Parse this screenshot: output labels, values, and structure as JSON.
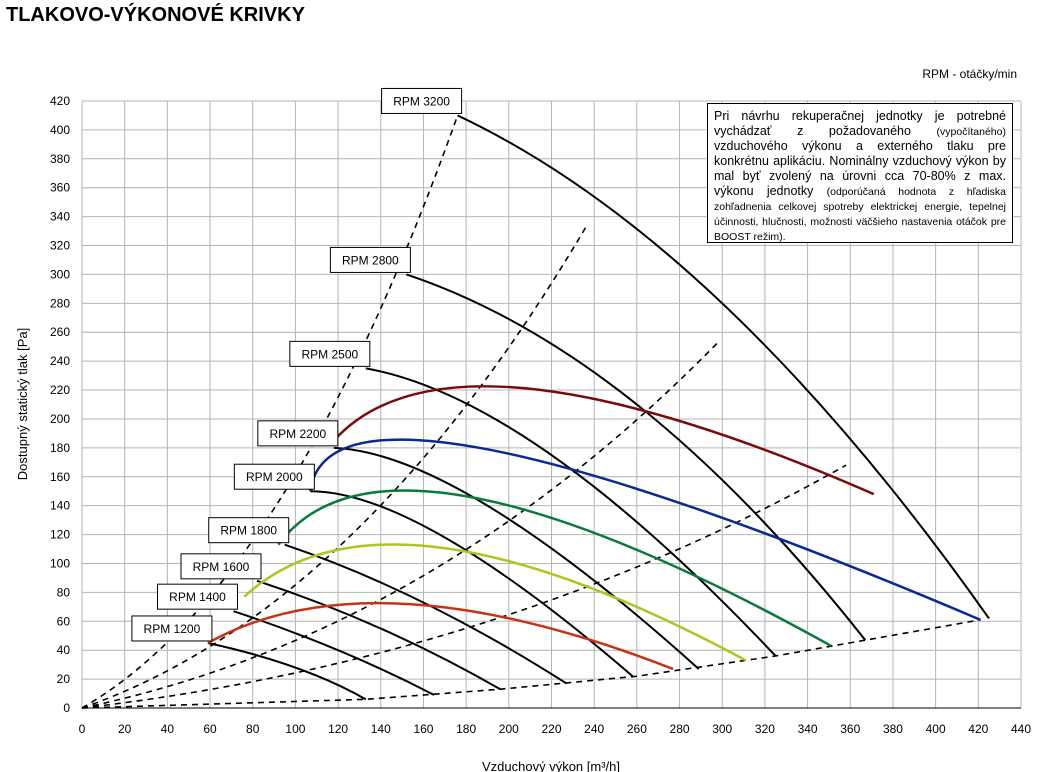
{
  "title": "TLAKOVO-VÝKONOVÉ KRIVKY",
  "rpm_unit_label": "RPM - otáčky/min",
  "note": {
    "main": "Pri návrhu rekuperačnej jednotky je potrebné vychádzať z požadovaného",
    "paren1": "(vypočítaného)",
    "main2": "vzduchového výkonu a externého tlaku pre konkrétnu aplikáciu. Nominálny vzduchový výkon by mal byť zvolený na úrovni cca 70-80% z max. výkonu jednotky",
    "paren2": "(odporúčaná hodnota z hľadiska zohľadnenia celkovej spotreby elektrickej energie, tepelnej účinnosti, hlučnosti, možnosti väčšieho nastavenia otáčok pre BOOST režim)."
  },
  "chart_data": {
    "type": "line",
    "xlabel": "Vzduchový výkon [m³/h]",
    "ylabel": "Dostupný statický tlak [Pa]",
    "xlim": [
      0,
      440
    ],
    "ylim": [
      0,
      420
    ],
    "x_ticks": [
      0,
      20,
      40,
      60,
      80,
      100,
      120,
      140,
      160,
      180,
      200,
      220,
      240,
      260,
      280,
      300,
      320,
      340,
      360,
      380,
      400,
      420,
      440
    ],
    "y_ticks": [
      0,
      20,
      40,
      60,
      80,
      100,
      120,
      140,
      160,
      180,
      200,
      220,
      240,
      260,
      280,
      300,
      320,
      340,
      360,
      380,
      400,
      420
    ],
    "grid": true,
    "rpm_curves": [
      {
        "name": "RPM 1200",
        "points": [
          [
            59,
            45
          ],
          [
            100,
            28
          ],
          [
            133,
            6
          ]
        ]
      },
      {
        "name": "RPM 1400",
        "points": [
          [
            71,
            67
          ],
          [
            120,
            40
          ],
          [
            165,
            9
          ]
        ]
      },
      {
        "name": "RPM 1600",
        "points": [
          [
            82,
            88
          ],
          [
            140,
            55
          ],
          [
            196,
            13
          ]
        ]
      },
      {
        "name": "RPM 1800",
        "points": [
          [
            95,
            113
          ],
          [
            160,
            73
          ],
          [
            227,
            17
          ]
        ]
      },
      {
        "name": "RPM 2000",
        "points": [
          [
            107,
            150
          ],
          [
            170,
            118
          ],
          [
            258,
            22
          ]
        ]
      },
      {
        "name": "RPM 2200",
        "points": [
          [
            118,
            180
          ],
          [
            190,
            140
          ],
          [
            289,
            27
          ]
        ]
      },
      {
        "name": "RPM 2500",
        "points": [
          [
            133,
            235
          ],
          [
            220,
            175
          ],
          [
            325,
            36
          ]
        ]
      },
      {
        "name": "RPM 2800",
        "points": [
          [
            152,
            300
          ],
          [
            260,
            210
          ],
          [
            367,
            47
          ]
        ]
      },
      {
        "name": "RPM 3200",
        "points": [
          [
            176,
            410
          ],
          [
            300,
            280
          ],
          [
            425,
            62
          ]
        ]
      }
    ],
    "rpm_labels": [
      "RPM 1200",
      "RPM 1400",
      "RPM 1600",
      "RPM 1800",
      "RPM 2000",
      "RPM 2200",
      "RPM 2500",
      "RPM 2800",
      "RPM 3200"
    ],
    "system_curves": [
      {
        "color": "#c83214",
        "points": [
          [
            59,
            45
          ],
          [
            152,
            72
          ],
          [
            277,
            27
          ]
        ]
      },
      {
        "color": "#a8c81e",
        "points": [
          [
            76,
            77
          ],
          [
            168,
            111
          ],
          [
            311,
            33
          ]
        ]
      },
      {
        "color": "#0a7a3c",
        "points": [
          [
            92,
            113
          ],
          [
            182,
            146
          ],
          [
            351,
            43
          ]
        ]
      },
      {
        "color": "#0a2896",
        "points": [
          [
            107,
            150
          ],
          [
            190,
            179
          ],
          [
            421,
            61
          ]
        ]
      },
      {
        "color": "#7a0a0a",
        "points": [
          [
            118,
            185
          ],
          [
            209,
            221
          ],
          [
            371,
            148
          ]
        ]
      }
    ],
    "dashed_lines": [
      {
        "points": [
          [
            0,
            0
          ],
          [
            176,
            410
          ]
        ]
      },
      {
        "points": [
          [
            0,
            0
          ],
          [
            237,
            335
          ]
        ]
      },
      {
        "points": [
          [
            0,
            0
          ],
          [
            298,
            253
          ]
        ]
      },
      {
        "points": [
          [
            0,
            0
          ],
          [
            358,
            168
          ]
        ]
      },
      {
        "points": [
          [
            0,
            0
          ],
          [
            133,
            6
          ],
          [
            196,
            13
          ],
          [
            260,
            22
          ],
          [
            325,
            36
          ],
          [
            421,
            61
          ]
        ]
      }
    ]
  }
}
